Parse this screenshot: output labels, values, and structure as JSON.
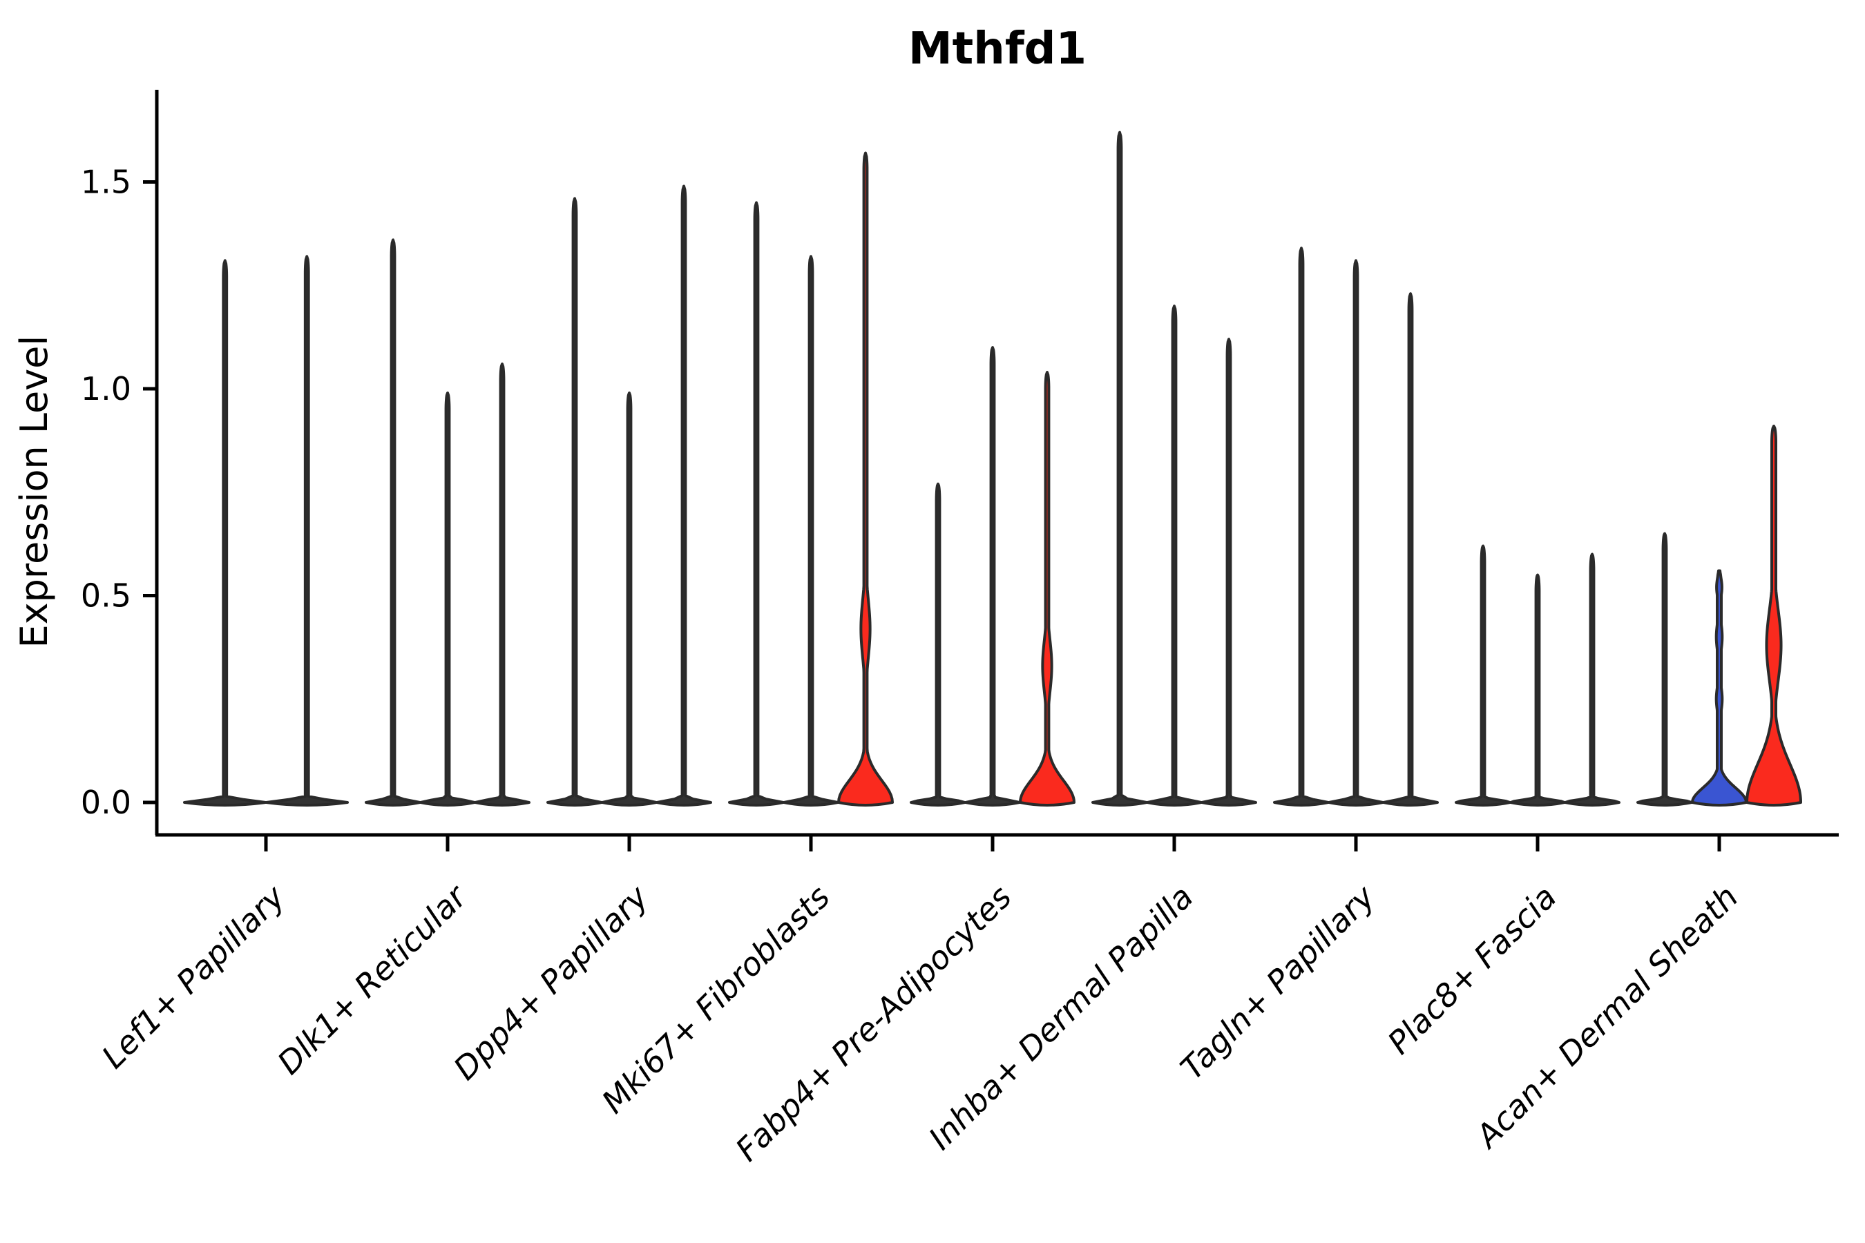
{
  "title": "Mthfd1",
  "axes": {
    "ylabel": "Expression Level",
    "ytick_labels": [
      "0.0",
      "0.5",
      "1.0",
      "1.5"
    ],
    "categories": [
      "Lef1+ Papillary",
      "Dlk1+ Reticular",
      "Dpp4+ Papillary",
      "Mki67+ Fibroblasts",
      "Fabp4+ Pre-Adipocytes",
      "Inhba+ Dermal Papilla",
      "Tagln+ Papillary",
      "Plac8+ Fascia",
      "Acan+ Dermal Sheath"
    ]
  },
  "colors": {
    "dark": "#333333",
    "red": "#FA2A1E",
    "blue": "#3A55D2",
    "edge": "#2A2A2A",
    "background": "#FFFFFF"
  },
  "chart_data": {
    "type": "violin",
    "title": "Mthfd1",
    "xlabel": "",
    "ylabel": "Expression Level",
    "ylim": [
      0,
      1.72
    ],
    "yticks": [
      0.0,
      0.5,
      1.0,
      1.5
    ],
    "grid": false,
    "legend": "none",
    "description": "Split violin plot; most violins are near-zero pancakes with a thin spike to the max expression value; three violins are filled red and one blue with visible density bulges.",
    "categories": [
      "Lef1+ Papillary",
      "Dlk1+ Reticular",
      "Dpp4+ Papillary",
      "Mki67+ Fibroblasts",
      "Fabp4+ Pre-Adipocytes",
      "Inhba+ Dermal Papilla",
      "Tagln+ Papillary",
      "Plac8+ Fascia",
      "Acan+ Dermal Sheath"
    ],
    "groups": [
      {
        "label": "Lef1+ Papillary",
        "violins": [
          {
            "max": 1.31,
            "fill": "dark"
          },
          {
            "max": 1.32,
            "fill": "dark"
          }
        ]
      },
      {
        "label": "Dlk1+ Reticular",
        "violins": [
          {
            "max": 1.36,
            "fill": "dark"
          },
          {
            "max": 0.99,
            "fill": "dark"
          },
          {
            "max": 1.06,
            "fill": "dark"
          }
        ]
      },
      {
        "label": "Dpp4+ Papillary",
        "violins": [
          {
            "max": 1.46,
            "fill": "dark"
          },
          {
            "max": 0.99,
            "fill": "dark"
          },
          {
            "max": 1.49,
            "fill": "dark"
          }
        ]
      },
      {
        "label": "Mki67+ Fibroblasts",
        "violins": [
          {
            "max": 1.45,
            "fill": "dark"
          },
          {
            "max": 1.32,
            "fill": "dark"
          },
          {
            "max": 1.57,
            "fill": "red",
            "base_sd": 0.075,
            "bumps": [
              {
                "at": 0.42,
                "sd": 0.1,
                "rel_w": 0.17
              }
            ]
          }
        ]
      },
      {
        "label": "Fabp4+ Pre-Adipocytes",
        "violins": [
          {
            "max": 0.77,
            "fill": "dark"
          },
          {
            "max": 1.1,
            "fill": "dark"
          },
          {
            "max": 1.04,
            "fill": "red",
            "base_sd": 0.075,
            "bumps": [
              {
                "at": 0.33,
                "sd": 0.09,
                "rel_w": 0.17
              }
            ]
          }
        ]
      },
      {
        "label": "Inhba+ Dermal Papilla",
        "violins": [
          {
            "max": 1.62,
            "fill": "dark"
          },
          {
            "max": 1.2,
            "fill": "dark"
          },
          {
            "max": 1.12,
            "fill": "dark"
          }
        ]
      },
      {
        "label": "Tagln+ Papillary",
        "violins": [
          {
            "max": 1.34,
            "fill": "dark"
          },
          {
            "max": 1.31,
            "fill": "dark"
          },
          {
            "max": 1.23,
            "fill": "dark"
          }
        ]
      },
      {
        "label": "Plac8+ Fascia",
        "violins": [
          {
            "max": 0.62,
            "fill": "dark"
          },
          {
            "max": 0.55,
            "fill": "dark"
          },
          {
            "max": 0.6,
            "fill": "dark"
          }
        ]
      },
      {
        "label": "Acan+ Dermal Sheath",
        "violins": [
          {
            "max": 0.65,
            "fill": "dark"
          },
          {
            "max": 0.56,
            "fill": "blue",
            "base_sd": 0.05,
            "spike_w": 3,
            "bumps": [
              {
                "at": 0.52,
                "sd": 0.035,
                "rel_w": 0.1
              },
              {
                "at": 0.4,
                "sd": 0.05,
                "rel_w": 0.11
              },
              {
                "at": 0.25,
                "sd": 0.045,
                "rel_w": 0.11
              }
            ]
          },
          {
            "max": 0.91,
            "fill": "red",
            "base_sd": 0.13,
            "spike_w": 3,
            "bumps": [
              {
                "at": 0.38,
                "sd": 0.12,
                "rel_w": 0.27
              }
            ]
          }
        ]
      }
    ]
  }
}
